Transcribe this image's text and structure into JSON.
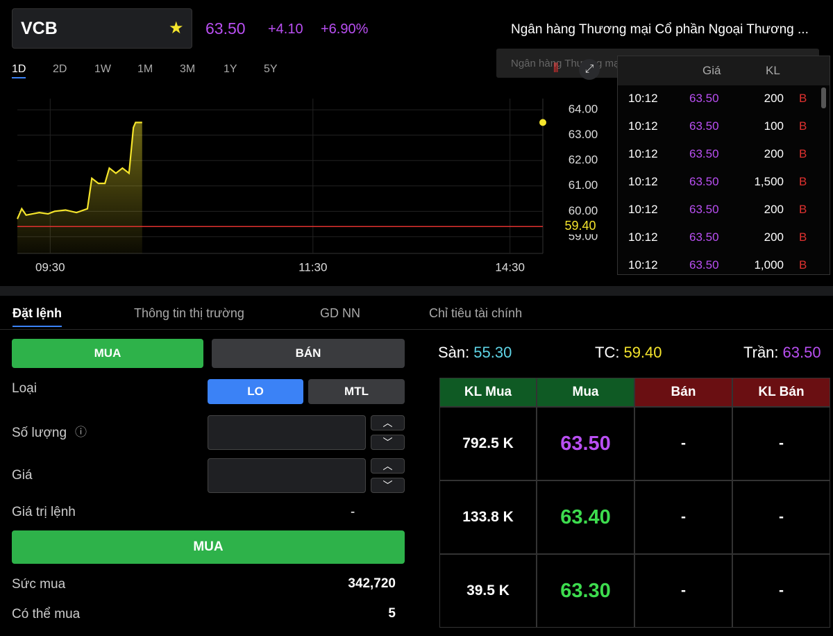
{
  "header": {
    "symbol": "VCB",
    "price": "63.50",
    "change": "+4.10",
    "change_pct": "+6.90%",
    "company": "Ngân hàng Thương mại Cổ phần Ngoại Thương ...",
    "company_tooltip": "Ngân hàng Thương mại Cổ phần Ngoại Thương Việt Nam"
  },
  "timeframes": {
    "items": [
      "1D",
      "2D",
      "1W",
      "1M",
      "3M",
      "1Y",
      "5Y"
    ],
    "active": 0
  },
  "chart_data": {
    "type": "line",
    "x": [
      "09:15",
      "09:17",
      "09:19",
      "09:22",
      "09:25",
      "09:29",
      "09:32",
      "09:37",
      "09:42",
      "09:47",
      "09:49",
      "09:52",
      "09:55",
      "09:57",
      "10:00",
      "10:03",
      "10:06",
      "10:08",
      "10:09",
      "10:12"
    ],
    "series": [
      {
        "color": "#f5e52c",
        "values": [
          59.7,
          60.1,
          59.85,
          59.9,
          59.95,
          59.9,
          60.0,
          60.05,
          59.95,
          60.1,
          61.3,
          61.1,
          61.1,
          61.7,
          61.5,
          61.7,
          61.5,
          63.3,
          63.5,
          63.5
        ]
      }
    ],
    "xlim": [
      "09:15",
      "14:45"
    ],
    "session_break": [
      "11:30",
      "13:00"
    ],
    "xticks": [
      "09:30",
      "11:30",
      "14:30"
    ],
    "ylim": [
      58.34,
      64.44
    ],
    "yticks": [
      {
        "value": 59,
        "label": "59.00"
      },
      {
        "value": 60,
        "label": "60.00"
      },
      {
        "value": 61,
        "label": "61.00"
      },
      {
        "value": 62,
        "label": "62.00"
      },
      {
        "value": 63,
        "label": "63.00"
      },
      {
        "value": 64,
        "label": "64.00"
      }
    ],
    "grid": true,
    "reference_line": {
      "value": 59.4,
      "label": "59.40",
      "color": "#e0312f",
      "label_color": "#f5e52c"
    }
  },
  "trades": {
    "columns": [
      "Giá",
      "KL"
    ],
    "rows": [
      [
        "10:12",
        "63.50",
        "200",
        "B"
      ],
      [
        "10:12",
        "63.50",
        "100",
        "B"
      ],
      [
        "10:12",
        "63.50",
        "200",
        "B"
      ],
      [
        "10:12",
        "63.50",
        "1,500",
        "B"
      ],
      [
        "10:12",
        "63.50",
        "200",
        "B"
      ],
      [
        "10:12",
        "63.50",
        "200",
        "B"
      ],
      [
        "10:12",
        "63.50",
        "1,000",
        "B"
      ]
    ]
  },
  "tabs": {
    "items": [
      "Đặt lệnh",
      "Thông tin thị trường",
      "GD NN",
      "Chỉ tiêu tài chính"
    ],
    "active": 0
  },
  "order_form": {
    "side_buttons": [
      "MUA",
      "BÁN"
    ],
    "type_label": "Loại",
    "types": [
      "LO",
      "MTL"
    ],
    "quantity_label": "Số lượng",
    "price_label": "Giá",
    "value_label": "Giá trị lệnh",
    "value": "-",
    "submit": "MUA",
    "buying_power_label": "Sức mua",
    "buying_power": "342,720",
    "max_qty_label": "Có thể mua",
    "max_qty": "5"
  },
  "price_limits": [
    {
      "label": "Sàn:",
      "value": "55.30",
      "color": "#5fd4e6"
    },
    {
      "label": "TC:",
      "value": "59.40",
      "color": "#f5e52c"
    },
    {
      "label": "Trần:",
      "value": "63.50",
      "color": "#b94ff2"
    }
  ],
  "order_book": {
    "columns": [
      "KL Mua",
      "Mua",
      "Bán",
      "KL Bán"
    ],
    "rows": [
      [
        "792.5 K",
        "63.50",
        "-",
        "-"
      ],
      [
        "133.8 K",
        "63.40",
        "-",
        "-"
      ],
      [
        "39.5 K",
        "63.30",
        "-",
        "-"
      ]
    ]
  }
}
